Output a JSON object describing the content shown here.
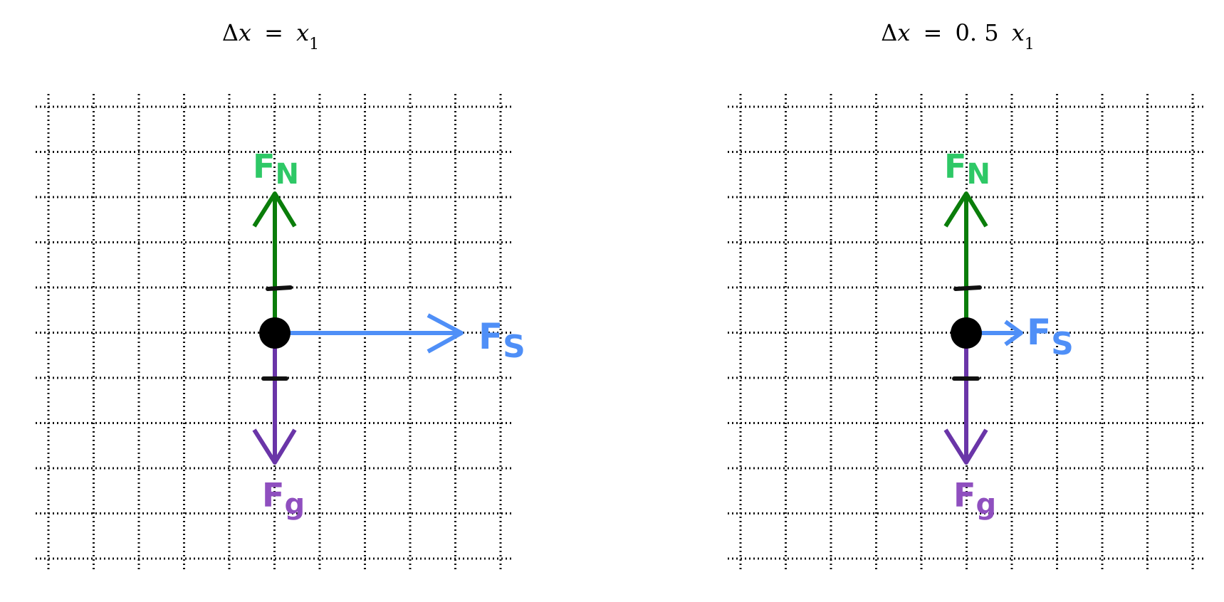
{
  "colors": {
    "grid": "#111111",
    "normal_force": "#0a7d0a",
    "normal_label": "#2ec866",
    "spring_force": "#4f8ff7",
    "gravity_force": "#6a35a8",
    "gravity_label": "#8f4fbf",
    "body": "#000000"
  },
  "panels": [
    {
      "title": {
        "delta": "Δ",
        "var": "x",
        "eq": "=",
        "coef": "",
        "rhs_var": "x",
        "sub": "1"
      },
      "forces": [
        {
          "name": "F",
          "sub": "N",
          "direction": "up",
          "magnitude_grid_units": 3
        },
        {
          "name": "F",
          "sub": "S",
          "direction": "right",
          "magnitude_grid_units": 4
        },
        {
          "name": "F",
          "sub": "g",
          "direction": "down",
          "magnitude_grid_units": 3
        }
      ]
    },
    {
      "title": {
        "delta": "Δ",
        "var": "x",
        "eq": "=",
        "coef": "0. 5",
        "rhs_var": "x",
        "sub": "1"
      },
      "forces": [
        {
          "name": "F",
          "sub": "N",
          "direction": "up",
          "magnitude_grid_units": 3
        },
        {
          "name": "F",
          "sub": "S",
          "direction": "right",
          "magnitude_grid_units": 1.2
        },
        {
          "name": "F",
          "sub": "g",
          "direction": "down",
          "magnitude_grid_units": 3
        }
      ]
    }
  ]
}
